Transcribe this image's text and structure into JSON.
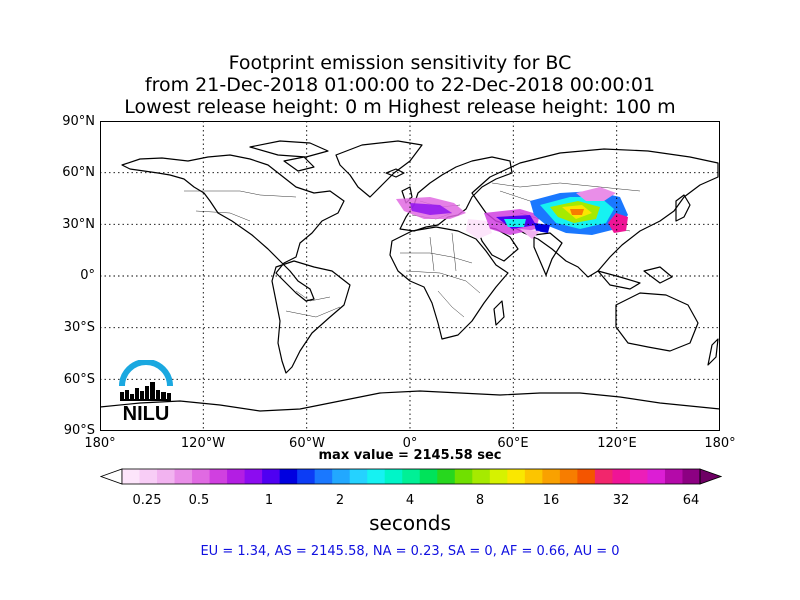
{
  "title": {
    "line1": "Footprint emission sensitivity for BC",
    "line2": "from 21-Dec-2018 01:00:00 to 22-Dec-2018 00:00:01",
    "line3": "Lowest release height: 0 m       Highest release height: 100 m"
  },
  "axes": {
    "lat_labels": [
      "90°N",
      "60°N",
      "30°N",
      "0°",
      "30°S",
      "60°S",
      "90°S"
    ],
    "lon_labels": [
      "180°",
      "120°W",
      "60°W",
      "0°",
      "60°E",
      "120°E",
      "180°"
    ]
  },
  "max_value": "max value = 2145.58 sec",
  "colorbar": {
    "tick_labels": [
      "0.25",
      "0.5",
      "1",
      "2",
      "4",
      "8",
      "16",
      "32",
      "64"
    ],
    "units": "seconds",
    "colors": [
      "#ffffff",
      "#fde5fb",
      "#f8cdf6",
      "#f2b3f0",
      "#e98ee8",
      "#e06ae2",
      "#d040e0",
      "#b31ee3",
      "#8c0cf0",
      "#4f00f2",
      "#0000e0",
      "#0c3cf5",
      "#1a78ff",
      "#22a8ff",
      "#25d2ff",
      "#16f2f2",
      "#00f5c8",
      "#00f096",
      "#00e35a",
      "#27d71e",
      "#70e000",
      "#a6ea00",
      "#d6f200",
      "#fae700",
      "#fcc500",
      "#f9a100",
      "#f77d00",
      "#f45500",
      "#f2266c",
      "#ef1496",
      "#ec1eb9",
      "#dc1ed5",
      "#b40aa9",
      "#8c0082",
      "#6e0064"
    ]
  },
  "stats": "EU = 1.34,  AS = 2145.58,  NA = 0.23,  SA = 0,  AF = 0.66,  AU = 0",
  "logo": {
    "text": "NILU",
    "ring_color": "#1aa8e0"
  }
}
